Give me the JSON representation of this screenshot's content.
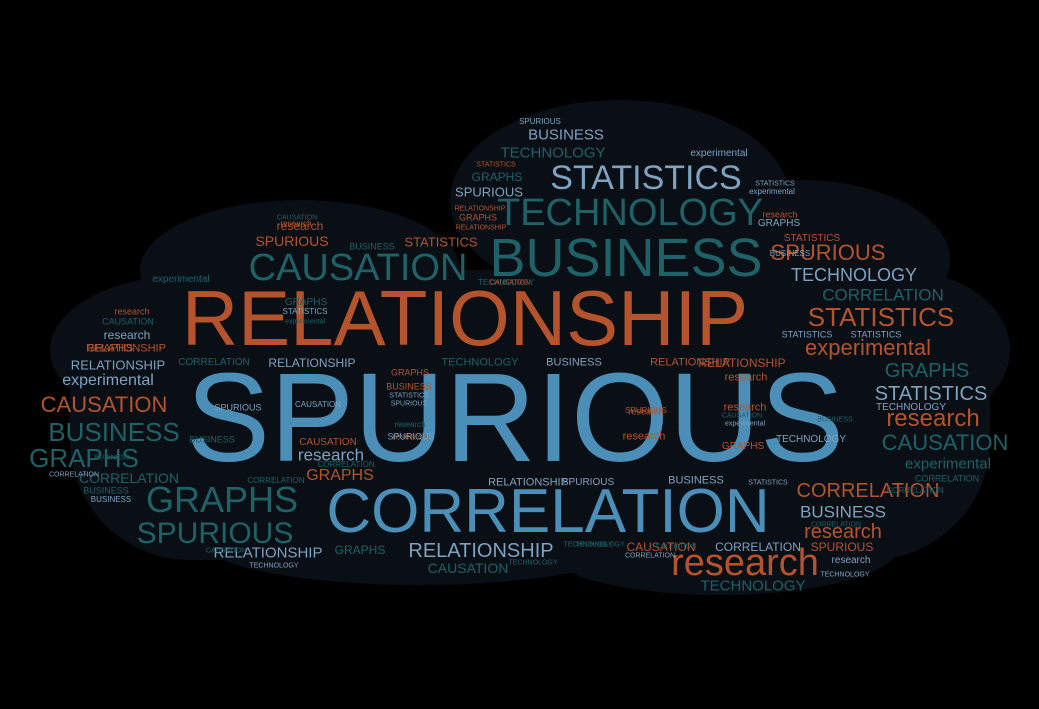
{
  "palette": {
    "background": "#000000",
    "cloud": "#0a0f16",
    "rust": "#b5542c",
    "teal": "#1e6167",
    "blue": "#4b8eb7",
    "slate": "#7ea2bf"
  },
  "words": [
    {
      "text": "SPURIOUS",
      "color": "blue"
    },
    {
      "text": "RELATIONSHIP",
      "color": "rust"
    },
    {
      "text": "CORRELATION",
      "color": "blue"
    },
    {
      "text": "BUSINESS",
      "color": "teal"
    },
    {
      "text": "TECHNOLOGY",
      "color": "teal"
    },
    {
      "text": "CAUSATION",
      "color": "teal"
    },
    {
      "text": "STATISTICS",
      "color": "slate"
    },
    {
      "text": "research",
      "color": "rust"
    },
    {
      "text": "GRAPHS",
      "color": "teal"
    },
    {
      "text": "SPURIOUS",
      "color": "teal"
    },
    {
      "text": "experimental",
      "color": "rust"
    },
    {
      "text": "STATISTICS",
      "color": "rust"
    },
    {
      "text": "SPURIOUS",
      "color": "rust"
    },
    {
      "text": "CAUSATION",
      "color": "rust"
    },
    {
      "text": "BUSINESS",
      "color": "teal"
    },
    {
      "text": "GRAPHS",
      "color": "teal"
    },
    {
      "text": "research",
      "color": "rust"
    },
    {
      "text": "CAUSATION",
      "color": "teal"
    },
    {
      "text": "TECHNOLOGY",
      "color": "slate"
    },
    {
      "text": "CORRELATION",
      "color": "teal"
    },
    {
      "text": "RELATIONSHIP",
      "color": "slate"
    },
    {
      "text": "CORRELATION",
      "color": "rust"
    },
    {
      "text": "GRAPHS",
      "color": "teal"
    },
    {
      "text": "STATISTICS",
      "color": "slate"
    },
    {
      "text": "experimental",
      "color": "slate"
    },
    {
      "text": "experimental",
      "color": "teal"
    },
    {
      "text": "BUSINESS",
      "color": "slate"
    },
    {
      "text": "RELATIONSHIP",
      "color": "slate"
    },
    {
      "text": "research",
      "color": "rust"
    },
    {
      "text": "TECHNOLOGY",
      "color": "teal"
    },
    {
      "text": "research",
      "color": "slate"
    },
    {
      "text": "GRAPHS",
      "color": "rust"
    },
    {
      "text": "CORRELATION",
      "color": "teal"
    },
    {
      "text": "BUSINESS",
      "color": "slate"
    },
    {
      "text": "TECHNOLOGY",
      "color": "teal"
    },
    {
      "text": "CAUSATION",
      "color": "teal"
    },
    {
      "text": "SPURIOUS",
      "color": "rust"
    },
    {
      "text": "STATISTICS",
      "color": "rust"
    },
    {
      "text": "RELATIONSHIP",
      "color": "slate"
    },
    {
      "text": "GRAPHS",
      "color": "teal"
    },
    {
      "text": "SPURIOUS",
      "color": "slate"
    },
    {
      "text": "GRAPHS",
      "color": "teal"
    },
    {
      "text": "research",
      "color": "rust"
    },
    {
      "text": "RELATIONSHIP",
      "color": "slate"
    },
    {
      "text": "BUSINESS",
      "color": "teal"
    },
    {
      "text": "TECHNOLOGY",
      "color": "teal"
    },
    {
      "text": "BUSINESS",
      "color": "slate"
    },
    {
      "text": "SPURIOUS",
      "color": "slate"
    },
    {
      "text": "CORRELATION",
      "color": "slate"
    },
    {
      "text": "research",
      "color": "rust"
    },
    {
      "text": "GRAPHS",
      "color": "teal"
    },
    {
      "text": "CAUSATION",
      "color": "rust"
    },
    {
      "text": "CORRELATION",
      "color": "teal"
    },
    {
      "text": "research",
      "color": "slate"
    },
    {
      "text": "experimental",
      "color": "teal"
    },
    {
      "text": "TECHNOLOGY",
      "color": "slate"
    },
    {
      "text": "BUSINESS",
      "color": "slate"
    },
    {
      "text": "SPURIOUS",
      "color": "rust"
    },
    {
      "text": "CAUSATION",
      "color": "rust"
    },
    {
      "text": "RELATIONSHIP",
      "color": "rust"
    },
    {
      "text": "research",
      "color": "rust"
    },
    {
      "text": "CAUSATION",
      "color": "teal"
    },
    {
      "text": "STATISTICS",
      "color": "rust"
    },
    {
      "text": "research",
      "color": "rust"
    },
    {
      "text": "STATISTICS",
      "color": "slate"
    },
    {
      "text": "STATISTICS",
      "color": "slate"
    },
    {
      "text": "experimental",
      "color": "slate"
    },
    {
      "text": "CORRELATION",
      "color": "slate"
    },
    {
      "text": "CORRELATION",
      "color": "teal"
    },
    {
      "text": "TECHNOLOGY",
      "color": "slate"
    },
    {
      "text": "research",
      "color": "rust"
    },
    {
      "text": "research",
      "color": "rust"
    },
    {
      "text": "research",
      "color": "rust"
    },
    {
      "text": "TECHNOLOGY",
      "color": "teal"
    },
    {
      "text": "SPURIOUS",
      "color": "slate"
    },
    {
      "text": "STATISTICS",
      "color": "rust"
    },
    {
      "text": "RELATIONSHIP",
      "color": "rust"
    },
    {
      "text": "BUSINESS",
      "color": "slate"
    },
    {
      "text": "TECHNOLOGY",
      "color": "teal"
    },
    {
      "text": "CAUSATION",
      "color": "rust"
    },
    {
      "text": "GRAPHS",
      "color": "slate"
    },
    {
      "text": "experimental",
      "color": "slate"
    },
    {
      "text": "BUSINESS",
      "color": "teal"
    },
    {
      "text": "STATISTICS",
      "color": "slate"
    },
    {
      "text": "TECHNOLOGY",
      "color": "slate"
    },
    {
      "text": "CORRELATION",
      "color": "slate"
    },
    {
      "text": "SPURIOUS",
      "color": "slate"
    },
    {
      "text": "BUSINESS",
      "color": "teal"
    },
    {
      "text": "CORRELATION",
      "color": "teal"
    },
    {
      "text": "RELATIONSHIP",
      "color": "rust"
    },
    {
      "text": "research",
      "color": "rust"
    },
    {
      "text": "GRAPHS",
      "color": "rust"
    },
    {
      "text": "CAUSATION",
      "color": "teal"
    },
    {
      "text": "research",
      "color": "rust"
    },
    {
      "text": "CORRELATION",
      "color": "teal"
    },
    {
      "text": "CAUSATION",
      "color": "teal"
    },
    {
      "text": "STATISTICS",
      "color": "slate"
    },
    {
      "text": "GRAPHS",
      "color": "rust"
    },
    {
      "text": "TECHNOLOGY",
      "color": "teal"
    },
    {
      "text": "SPURIOUS",
      "color": "rust"
    },
    {
      "text": "STATISTICS",
      "color": "slate"
    },
    {
      "text": "BUSINESS",
      "color": "teal"
    },
    {
      "text": "RELATIONSHIP",
      "color": "slate"
    },
    {
      "text": "CAUSATION",
      "color": "slate"
    },
    {
      "text": "experimental",
      "color": "teal"
    },
    {
      "text": "GRAPHS",
      "color": "rust"
    },
    {
      "text": "research",
      "color": "teal"
    },
    {
      "text": "GRAPHS",
      "color": "rust"
    },
    {
      "text": "SPURIOUS",
      "color": "slate"
    },
    {
      "text": "BUSINESS",
      "color": "rust"
    },
    {
      "text": "STATISTICS",
      "color": "slate"
    },
    {
      "text": "TECHNOLOGY",
      "color": "slate"
    },
    {
      "text": "RELATIONSHIP",
      "color": "rust"
    },
    {
      "text": "BUSINESS",
      "color": "slate"
    },
    {
      "text": "SPURIOUS",
      "color": "slate"
    },
    {
      "text": "CORRELATION",
      "color": "teal"
    },
    {
      "text": "research",
      "color": "slate"
    },
    {
      "text": "CORRELATION",
      "color": "teal"
    },
    {
      "text": "CAUSATION",
      "color": "teal"
    },
    {
      "text": "TECHNOLOGY",
      "color": "teal"
    },
    {
      "text": "experimental",
      "color": "slate"
    },
    {
      "text": "BUSINESS",
      "color": "teal"
    },
    {
      "text": "CAUSATION",
      "color": "teal"
    },
    {
      "text": "RELATIONSHIP",
      "color": "rust"
    }
  ]
}
